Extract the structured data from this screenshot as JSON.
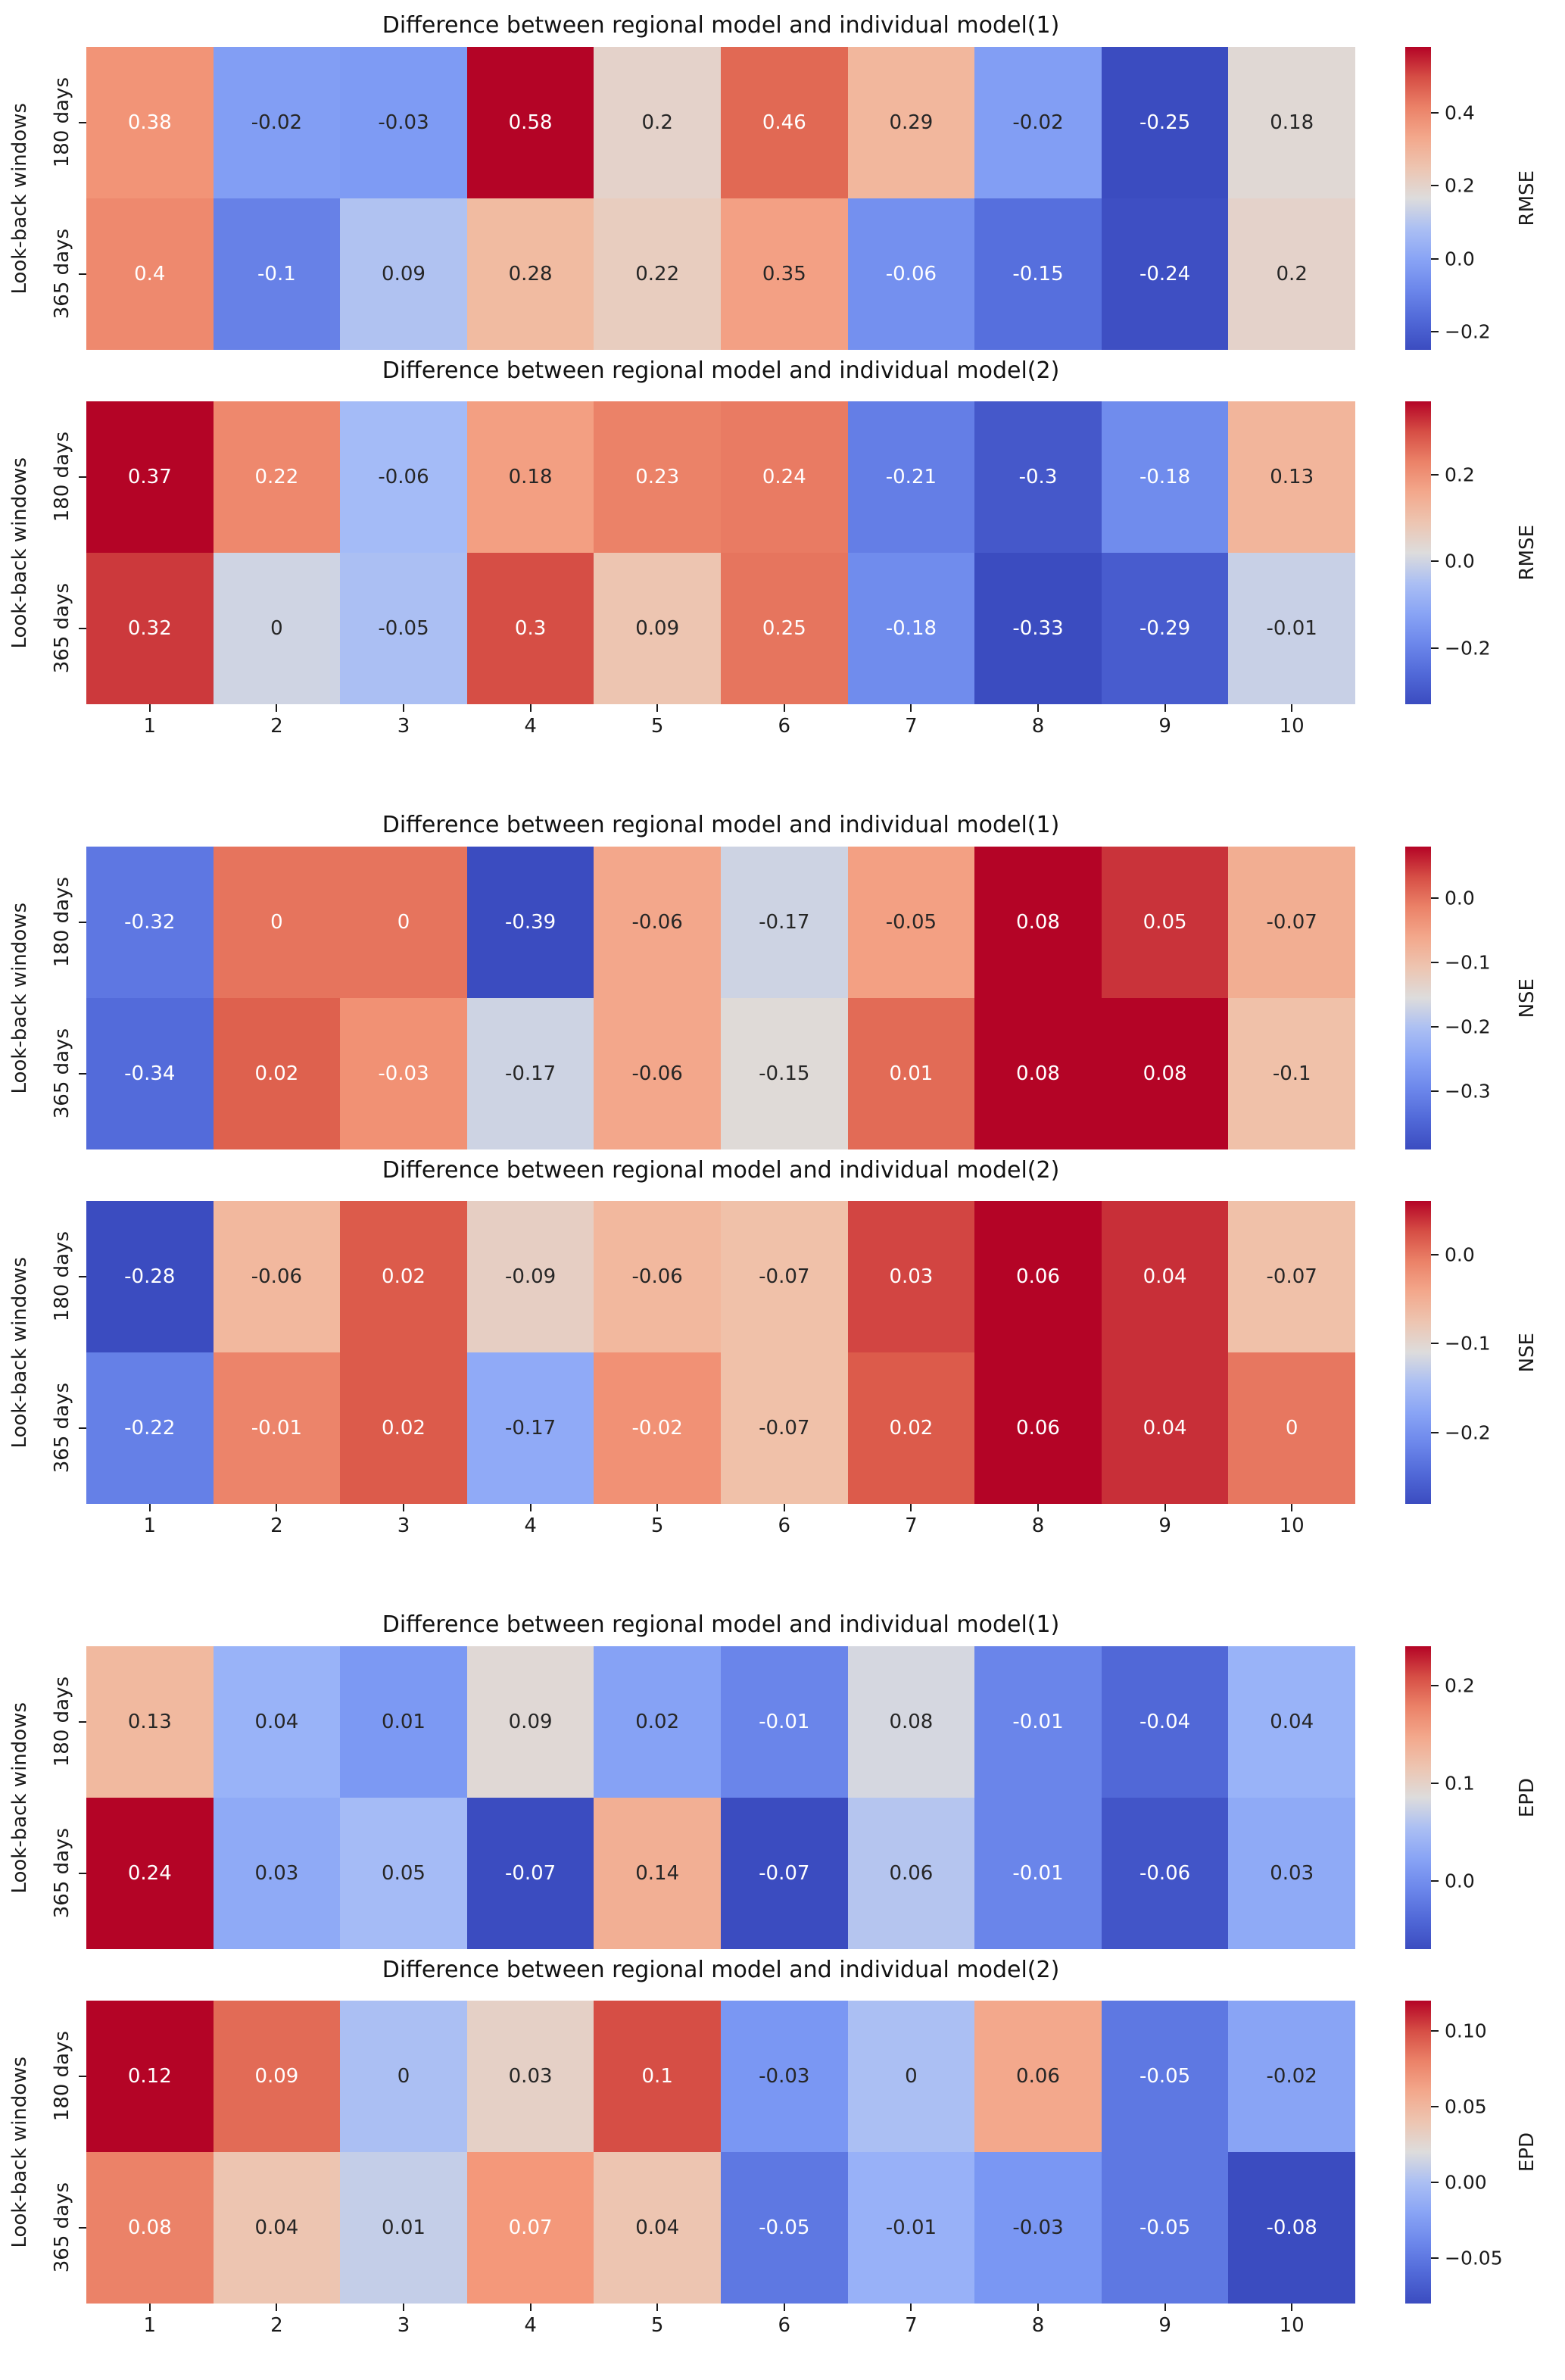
{
  "figure": {
    "background": "#ffffff",
    "text_color": "#1a1a1a",
    "annot_dark": "#262626",
    "annot_light": "#ffffff",
    "colormap": {
      "name": "coolwarm",
      "stops": [
        "#3b4cc0",
        "#5770de",
        "#7a97f3",
        "#9fb8f9",
        "#dddcdc",
        "#f1bfa6",
        "#f4987a",
        "#de604d",
        "#b40426"
      ]
    }
  },
  "chart_data": [
    {
      "type": "heatmap",
      "title": "Difference between regional model and individual model(1)",
      "colorbar_label": "RMSE",
      "ylabel": "Look-back windows",
      "rows": [
        "180 days",
        "365 days"
      ],
      "columns": [
        "1",
        "2",
        "3",
        "4",
        "5",
        "6",
        "7",
        "8",
        "9",
        "10"
      ],
      "values": [
        [
          0.38,
          -0.02,
          -0.03,
          0.58,
          0.2,
          0.46,
          0.29,
          -0.02,
          -0.25,
          0.18
        ],
        [
          0.4,
          -0.1,
          0.09,
          0.28,
          0.22,
          0.35,
          -0.06,
          -0.15,
          -0.24,
          0.2
        ]
      ],
      "vmin": -0.25,
      "vmax": 0.58,
      "colorbar_ticks": [
        "0.4",
        "0.2",
        "0.0",
        "−0.2"
      ],
      "show_xticklabels": false
    },
    {
      "type": "heatmap",
      "title": "Difference between regional model and individual model(2)",
      "colorbar_label": "RMSE",
      "ylabel": "Look-back windows",
      "rows": [
        "180 days",
        "365 days"
      ],
      "columns": [
        "1",
        "2",
        "3",
        "4",
        "5",
        "6",
        "7",
        "8",
        "9",
        "10"
      ],
      "values": [
        [
          0.37,
          0.22,
          -0.06,
          0.18,
          0.23,
          0.24,
          -0.21,
          -0.3,
          -0.18,
          0.13
        ],
        [
          0.32,
          0,
          -0.05,
          0.3,
          0.09,
          0.25,
          -0.18,
          -0.33,
          -0.29,
          -0.01
        ]
      ],
      "vmin": -0.33,
      "vmax": 0.37,
      "colorbar_ticks": [
        "0.2",
        "0.0",
        "−0.2"
      ],
      "show_xticklabels": true
    },
    {
      "type": "heatmap",
      "title": "Difference between regional model and individual model(1)",
      "colorbar_label": "NSE",
      "ylabel": "Look-back windows",
      "rows": [
        "180 days",
        "365 days"
      ],
      "columns": [
        "1",
        "2",
        "3",
        "4",
        "5",
        "6",
        "7",
        "8",
        "9",
        "10"
      ],
      "values": [
        [
          -0.32,
          0,
          0,
          -0.39,
          -0.06,
          -0.17,
          -0.05,
          0.08,
          0.05,
          -0.07
        ],
        [
          -0.34,
          0.02,
          -0.03,
          -0.17,
          -0.06,
          -0.15,
          0.01,
          0.08,
          0.08,
          -0.1
        ]
      ],
      "vmin": -0.39,
      "vmax": 0.08,
      "colorbar_ticks": [
        "0.0",
        "−0.1",
        "−0.2",
        "−0.3"
      ],
      "show_xticklabels": false
    },
    {
      "type": "heatmap",
      "title": "Difference between regional model and individual model(2)",
      "colorbar_label": "NSE",
      "ylabel": "Look-back windows",
      "rows": [
        "180 days",
        "365 days"
      ],
      "columns": [
        "1",
        "2",
        "3",
        "4",
        "5",
        "6",
        "7",
        "8",
        "9",
        "10"
      ],
      "values": [
        [
          -0.28,
          -0.06,
          0.02,
          -0.09,
          -0.06,
          -0.07,
          0.03,
          0.06,
          0.04,
          -0.07
        ],
        [
          -0.22,
          -0.01,
          0.02,
          -0.17,
          -0.02,
          -0.07,
          0.02,
          0.06,
          0.04,
          0
        ]
      ],
      "vmin": -0.28,
      "vmax": 0.06,
      "colorbar_ticks": [
        "0.0",
        "−0.1",
        "−0.2"
      ],
      "show_xticklabels": true
    },
    {
      "type": "heatmap",
      "title": "Difference between regional model and individual model(1)",
      "colorbar_label": "EPD",
      "ylabel": "Look-back windows",
      "rows": [
        "180 days",
        "365 days"
      ],
      "columns": [
        "1",
        "2",
        "3",
        "4",
        "5",
        "6",
        "7",
        "8",
        "9",
        "10"
      ],
      "values": [
        [
          0.13,
          0.04,
          0.01,
          0.09,
          0.02,
          -0.01,
          0.08,
          -0.01,
          -0.04,
          0.04
        ],
        [
          0.24,
          0.03,
          0.05,
          -0.07,
          0.14,
          -0.07,
          0.06,
          -0.01,
          -0.06,
          0.03
        ]
      ],
      "vmin": -0.07,
      "vmax": 0.24,
      "colorbar_ticks": [
        "0.2",
        "0.1",
        "0.0"
      ],
      "show_xticklabels": false
    },
    {
      "type": "heatmap",
      "title": "Difference between regional model and individual model(2)",
      "colorbar_label": "EPD",
      "ylabel": "Look-back windows",
      "rows": [
        "180 days",
        "365 days"
      ],
      "columns": [
        "1",
        "2",
        "3",
        "4",
        "5",
        "6",
        "7",
        "8",
        "9",
        "10"
      ],
      "values": [
        [
          0.12,
          0.09,
          0,
          0.03,
          0.1,
          -0.03,
          0,
          0.06,
          -0.05,
          -0.02
        ],
        [
          0.08,
          0.04,
          0.01,
          0.07,
          0.04,
          -0.05,
          -0.01,
          -0.03,
          -0.05,
          -0.08
        ]
      ],
      "vmin": -0.08,
      "vmax": 0.12,
      "colorbar_ticks": [
        "0.10",
        "0.05",
        "0.00",
        "−0.05"
      ],
      "show_xticklabels": true
    }
  ]
}
